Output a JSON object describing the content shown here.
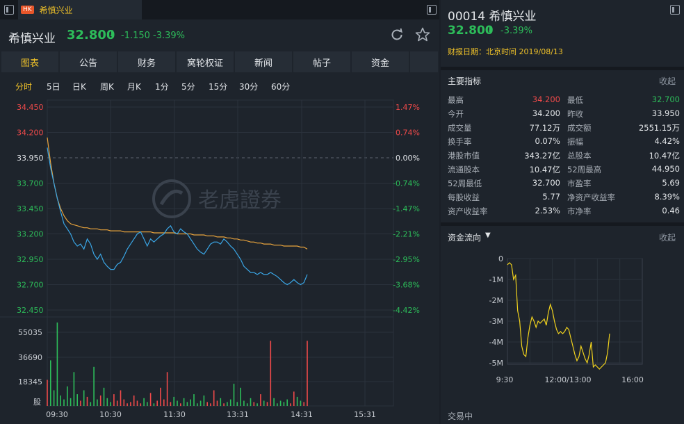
{
  "window": {
    "tab_badge": "HK",
    "tab_title": "希慎兴业"
  },
  "header": {
    "name": "希慎兴业",
    "price": "32.800",
    "arrow": "⬇",
    "change": "-1.150 -3.39%"
  },
  "subtabs": [
    "图表",
    "公告",
    "财务",
    "窝轮权证",
    "新闻",
    "帖子",
    "资金"
  ],
  "periods": [
    "分时",
    "5日",
    "日K",
    "周K",
    "月K",
    "1分",
    "5分",
    "15分",
    "30分",
    "60分"
  ],
  "intraday": {
    "price_ticks": [
      "34.450",
      "34.200",
      "33.950",
      "33.700",
      "33.450",
      "33.200",
      "32.950",
      "32.700",
      "32.450"
    ],
    "pct_ticks": [
      "1.47%",
      "0.74%",
      "0.00%",
      "-0.74%",
      "-1.47%",
      "-2.21%",
      "-2.95%",
      "-3.68%",
      "-4.42%"
    ],
    "volume_ticks": [
      "55035",
      "36690",
      "18345",
      "股"
    ],
    "time_ticks": [
      "09:30",
      "10:30",
      "11:30",
      "13:31",
      "14:31",
      "15:31"
    ],
    "watermark": "老虎證券",
    "prev_close": 33.95,
    "y_range": [
      32.45,
      34.45
    ],
    "volume_max": 64000,
    "price_series": [
      34.05,
      33.85,
      33.7,
      33.55,
      33.42,
      33.3,
      33.25,
      33.2,
      33.12,
      33.08,
      33.1,
      33.05,
      33.15,
      33.1,
      33.0,
      32.95,
      33.0,
      32.92,
      32.88,
      32.85,
      32.85,
      32.9,
      32.92,
      32.98,
      33.05,
      33.1,
      33.15,
      33.2,
      33.22,
      33.15,
      33.08,
      33.15,
      33.12,
      33.15,
      33.18,
      33.2,
      33.25,
      33.28,
      33.22,
      33.2,
      33.25,
      33.22,
      33.2,
      33.15,
      33.1,
      33.05,
      33.02,
      33.0,
      33.05,
      33.1,
      33.12,
      33.12,
      33.1,
      33.15,
      33.12,
      33.08,
      33.05,
      33.0,
      32.95,
      32.88,
      32.85,
      32.82,
      32.82,
      32.8,
      32.82,
      32.8,
      32.8,
      32.82,
      32.8,
      32.78,
      32.75,
      32.72,
      32.7,
      32.72,
      32.75,
      32.72,
      32.7,
      32.72,
      32.8
    ],
    "avg_series": [
      34.15,
      33.9,
      33.7,
      33.55,
      33.45,
      33.38,
      33.33,
      33.3,
      33.29,
      33.28,
      33.27,
      33.26,
      33.26,
      33.25,
      33.25,
      33.25,
      33.24,
      33.24,
      33.24,
      33.23,
      33.23,
      33.23,
      33.23,
      33.22,
      33.22,
      33.22,
      33.22,
      33.22,
      33.22,
      33.22,
      33.22,
      33.22,
      33.21,
      33.21,
      33.21,
      33.21,
      33.21,
      33.21,
      33.21,
      33.2,
      33.2,
      33.2,
      33.2,
      33.2,
      33.19,
      33.19,
      33.19,
      33.19,
      33.18,
      33.18,
      33.18,
      33.17,
      33.17,
      33.17,
      33.16,
      33.16,
      33.15,
      33.15,
      33.14,
      33.14,
      33.13,
      33.12,
      33.12,
      33.11,
      33.11,
      33.1,
      33.1,
      33.1,
      33.09,
      33.09,
      33.09,
      33.08,
      33.08,
      33.08,
      33.08,
      33.08,
      33.07,
      33.07,
      33.05
    ],
    "volume_series": [
      20000,
      35000,
      12000,
      64000,
      8000,
      5000,
      15000,
      6000,
      26000,
      9000,
      4000,
      12000,
      7000,
      3000,
      30000,
      5000,
      8000,
      14000,
      6000,
      3000,
      9000,
      4000,
      12000,
      5000,
      2000,
      3000,
      8000,
      4000,
      2000,
      6000,
      3000,
      10000,
      2000,
      4000,
      14000,
      5000,
      26000,
      3000,
      7000,
      4000,
      2000,
      6000,
      3000,
      5000,
      9000,
      2000,
      4000,
      8000,
      3000,
      2000,
      12000,
      4000,
      6000,
      2000,
      3000,
      5000,
      17000,
      3000,
      14000,
      4000,
      2000,
      6000,
      3000,
      2000,
      9000,
      4000,
      3000,
      50000,
      6000,
      2000,
      4000,
      3000,
      5000,
      2000,
      11000,
      7000,
      4000,
      3000,
      50000
    ]
  },
  "right": {
    "code_name": "00014 希慎兴业",
    "price": "32.800",
    "arrow": "⬇",
    "change": "-3.39%",
    "report_date": "财报日期：北京时间 2019/08/13",
    "metrics_title": "主要指标",
    "collapse": "收起",
    "metrics": [
      [
        "最高",
        "34.200",
        "最低",
        "32.700"
      ],
      [
        "今开",
        "34.200",
        "昨收",
        "33.950"
      ],
      [
        "成交量",
        "77.12万",
        "成交额",
        "2551.15万"
      ],
      [
        "换手率",
        "0.07%",
        "振幅",
        "4.42%"
      ],
      [
        "港股市值",
        "343.27亿",
        "总股本",
        "10.47亿"
      ],
      [
        "流通股本",
        "10.47亿",
        "52周最高",
        "44.950"
      ],
      [
        "52周最低",
        "32.700",
        "市盈率",
        "5.69"
      ],
      [
        "每股收益",
        "5.77",
        "净资产收益率",
        "8.39%"
      ],
      [
        "资产收益率",
        "2.53%",
        "市净率",
        "0.46"
      ]
    ],
    "flow_title": "资金流向",
    "flow_caret": "▼",
    "flow_y_ticks": [
      "0",
      "-1M",
      "-2M",
      "-3M",
      "-4M",
      "-5M"
    ],
    "flow_x_ticks": [
      "9:30",
      "12:00/13:00",
      "16:00"
    ],
    "flow_series": [
      -0.3,
      -0.2,
      -0.3,
      -1.0,
      -0.8,
      -2.5,
      -3.0,
      -4.2,
      -4.6,
      -4.7,
      -3.8,
      -3.2,
      -2.8,
      -3.0,
      -3.3,
      -3.0,
      -3.1,
      -3.0,
      -2.9,
      -3.2,
      -2.6,
      -2.2,
      -2.5,
      -3.0,
      -3.4,
      -3.6,
      -3.5,
      -3.6,
      -3.5,
      -3.3,
      -3.4,
      -3.8,
      -4.2,
      -4.6,
      -4.9,
      -4.7,
      -4.2,
      -4.5,
      -4.8,
      -5.0,
      -4.6,
      -4.0,
      -5.2,
      -5.1,
      -5.2,
      -5.3,
      -5.2,
      -5.1,
      -5.0,
      -4.5,
      -3.6
    ],
    "status": "交易中"
  },
  "colors": {
    "up": "#f04a4a",
    "down": "#2dbd5a",
    "price_line": "#3aa6e6",
    "avg_line": "#e8a33c",
    "flow_line": "#f2d31d",
    "accent": "#f0c229"
  }
}
